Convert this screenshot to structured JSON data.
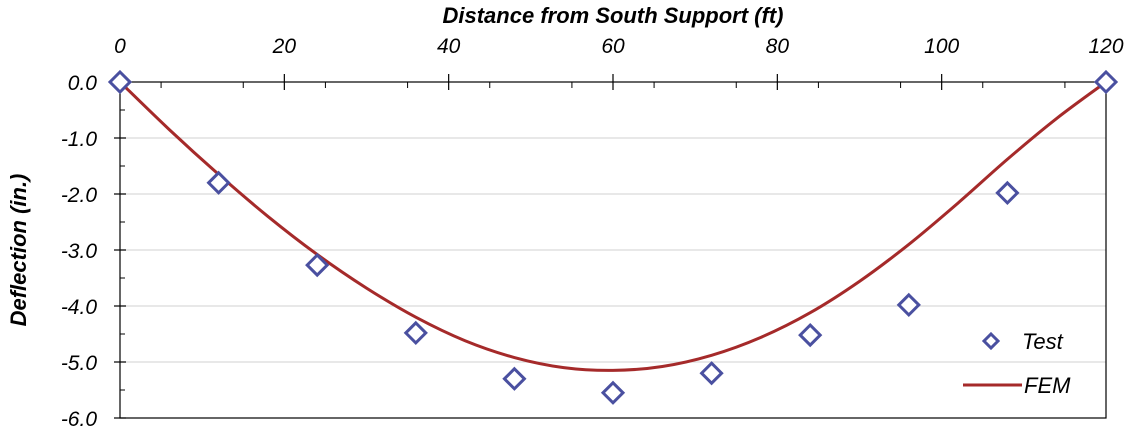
{
  "chart_data": {
    "type": "line",
    "title": "",
    "xlabel": "Distance from South Support (ft)",
    "ylabel": "Deflection (in.)",
    "xlim": [
      0,
      120
    ],
    "ylim": [
      -6.0,
      0.0
    ],
    "x_ticks": [
      0,
      20,
      40,
      60,
      80,
      100,
      120
    ],
    "x_tick_labels": [
      "0",
      "20",
      "40",
      "60",
      "80",
      "100",
      "120"
    ],
    "y_ticks": [
      0,
      -1,
      -2,
      -3,
      -4,
      -5,
      -6
    ],
    "y_tick_labels": [
      "0.0",
      "-1.0",
      "-2.0",
      "-3.0",
      "-4.0",
      "-5.0",
      "-6.0"
    ],
    "x_axis_position": "top",
    "grid": "horizontal",
    "legend_position": "bottom-right",
    "series": [
      {
        "name": "Test",
        "kind": "scatter",
        "marker": "diamond",
        "color": "#4a50a0",
        "x": [
          0,
          12,
          24,
          36,
          48,
          60,
          72,
          84,
          96,
          108,
          120
        ],
        "y": [
          0.0,
          -1.8,
          -3.27,
          -4.48,
          -5.3,
          -5.55,
          -5.2,
          -4.52,
          -3.98,
          -1.98,
          0.0
        ]
      },
      {
        "name": "FEM",
        "kind": "line",
        "color": "#a52a2a",
        "x": [
          0,
          6,
          12,
          18,
          24,
          30,
          36,
          42,
          48,
          54,
          60,
          66,
          72,
          78,
          84,
          90,
          96,
          102,
          108,
          114,
          120
        ],
        "y": [
          0.0,
          -0.85,
          -1.65,
          -2.4,
          -3.08,
          -3.68,
          -4.2,
          -4.62,
          -4.92,
          -5.1,
          -5.15,
          -5.08,
          -4.88,
          -4.56,
          -4.12,
          -3.56,
          -2.9,
          -2.16,
          -1.38,
          -0.65,
          0.0
        ]
      }
    ]
  }
}
